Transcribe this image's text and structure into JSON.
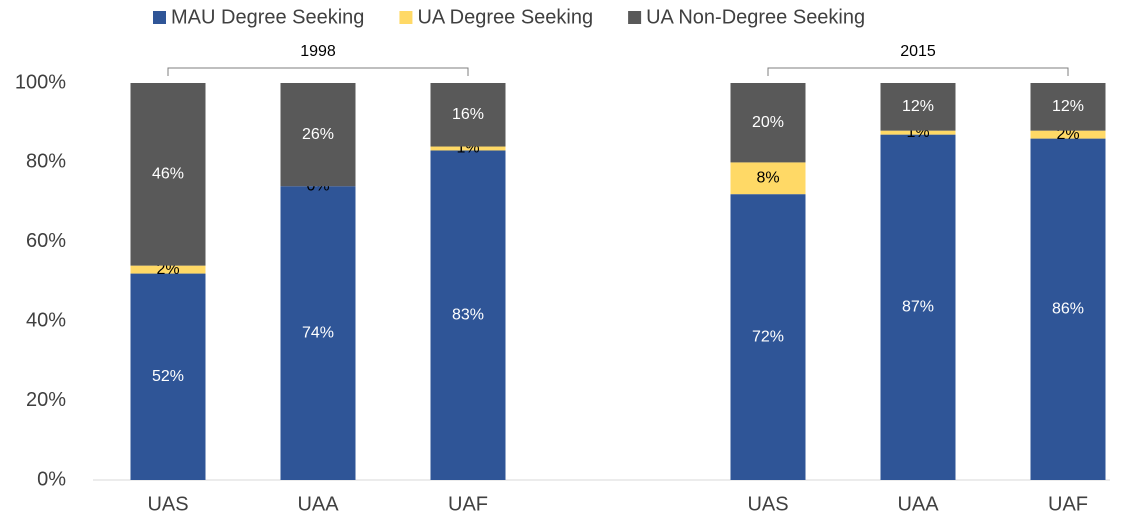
{
  "chart_data": {
    "type": "stacked_bar",
    "categories": [
      "UAS",
      "UAA",
      "UAF",
      null,
      "UAS",
      "UAA",
      "UAF"
    ],
    "series": [
      {
        "name": "MAU Degree Seeking",
        "color": "#2f5597",
        "values": [
          52,
          74,
          83,
          null,
          72,
          87,
          86
        ],
        "value_labels": [
          "52%",
          "74%",
          "83%",
          null,
          "72%",
          "87%",
          "86%"
        ]
      },
      {
        "name": "UA Degree Seeking",
        "color": "#ffd966",
        "values": [
          2,
          0,
          1,
          null,
          8,
          1,
          2
        ],
        "value_labels": [
          "2%",
          "0%",
          "1%",
          null,
          "8%",
          "1%",
          "2%"
        ]
      },
      {
        "name": "UA Non-Degree Seeking",
        "color": "#595959",
        "values": [
          46,
          26,
          16,
          null,
          20,
          12,
          12
        ],
        "value_labels": [
          "46%",
          "26%",
          "16%",
          null,
          "20%",
          "12%",
          "12%"
        ]
      }
    ],
    "annotations": [
      "1998",
      "2015"
    ],
    "ylim": [
      0,
      100
    ],
    "yticks": [
      {
        "value": 0,
        "label": "0%"
      },
      {
        "value": 20,
        "label": "20%"
      },
      {
        "value": 40,
        "label": "40%"
      },
      {
        "value": 60,
        "label": "60%"
      },
      {
        "value": 80,
        "label": "80%"
      },
      {
        "value": 100,
        "label": "100%"
      }
    ],
    "grid": false,
    "legend": "top"
  }
}
